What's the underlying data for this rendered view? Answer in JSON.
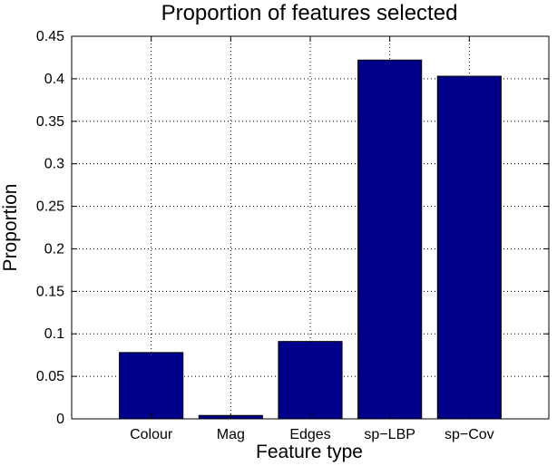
{
  "chart_data": {
    "type": "bar",
    "title": "Proportion of features selected",
    "xlabel": "Feature type",
    "ylabel": "Proportion",
    "categories": [
      "Colour",
      "Mag",
      "Edges",
      "sp−LBP",
      "sp−Cov"
    ],
    "values": [
      0.078,
      0.004,
      0.091,
      0.422,
      0.403
    ],
    "ylim": [
      0,
      0.45
    ],
    "yticks": [
      "0",
      "0.05",
      "0.1",
      "0.15",
      "0.2",
      "0.25",
      "0.3",
      "0.35",
      "0.4",
      "0.45"
    ],
    "yticks_values": [
      0,
      0.05,
      0.1,
      0.15,
      0.2,
      0.25,
      0.3,
      0.35,
      0.4,
      0.45
    ],
    "grid": true,
    "bar_color": "#00008B"
  }
}
